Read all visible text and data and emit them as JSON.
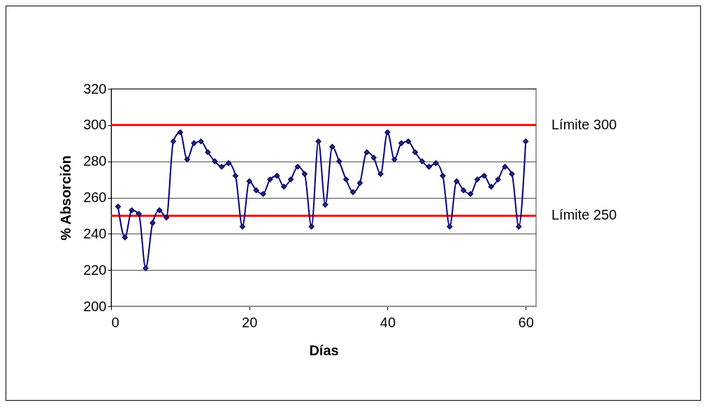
{
  "chart_data": {
    "type": "line",
    "xlabel": "Días",
    "ylabel": "% Absorción",
    "x": [
      1,
      2,
      3,
      4,
      5,
      6,
      7,
      8,
      9,
      10,
      11,
      12,
      13,
      14,
      15,
      16,
      17,
      18,
      19,
      20,
      21,
      22,
      23,
      24,
      25,
      26,
      27,
      28,
      29,
      30,
      31,
      32,
      33,
      34,
      35,
      36,
      37,
      38,
      39,
      40,
      41,
      42,
      43,
      44,
      45,
      46,
      47,
      48,
      49,
      50,
      51,
      52,
      53,
      54,
      55,
      56,
      57,
      58,
      59,
      60
    ],
    "series": [
      {
        "color": "#000080",
        "values": [
          255,
          238,
          253,
          251,
          221,
          246,
          253,
          249,
          291,
          296,
          281,
          290,
          291,
          285,
          280,
          277,
          279,
          272,
          244,
          269,
          264,
          262,
          270,
          272,
          266,
          270,
          277,
          273,
          244,
          291,
          256,
          288,
          280,
          270,
          263,
          268,
          285,
          282,
          273,
          296,
          281,
          290,
          291,
          285,
          280,
          277,
          279,
          272,
          244,
          269,
          264,
          262,
          270,
          272,
          266,
          270,
          277,
          273,
          244,
          291
        ]
      }
    ],
    "xlim": [
      0,
      61.5
    ],
    "xticks": [
      0,
      20,
      40,
      60
    ],
    "ylim": [
      200,
      320
    ],
    "yticks": [
      200,
      220,
      240,
      260,
      280,
      300,
      320
    ],
    "ref_lines": [
      {
        "axis": "y",
        "value": 300,
        "label": "Límite 300",
        "color": "#ff0000"
      },
      {
        "axis": "y",
        "value": 250,
        "label": "Límite 250",
        "color": "#ff0000"
      }
    ],
    "grid": "y",
    "marker": "diamond",
    "line_style": "solid"
  }
}
